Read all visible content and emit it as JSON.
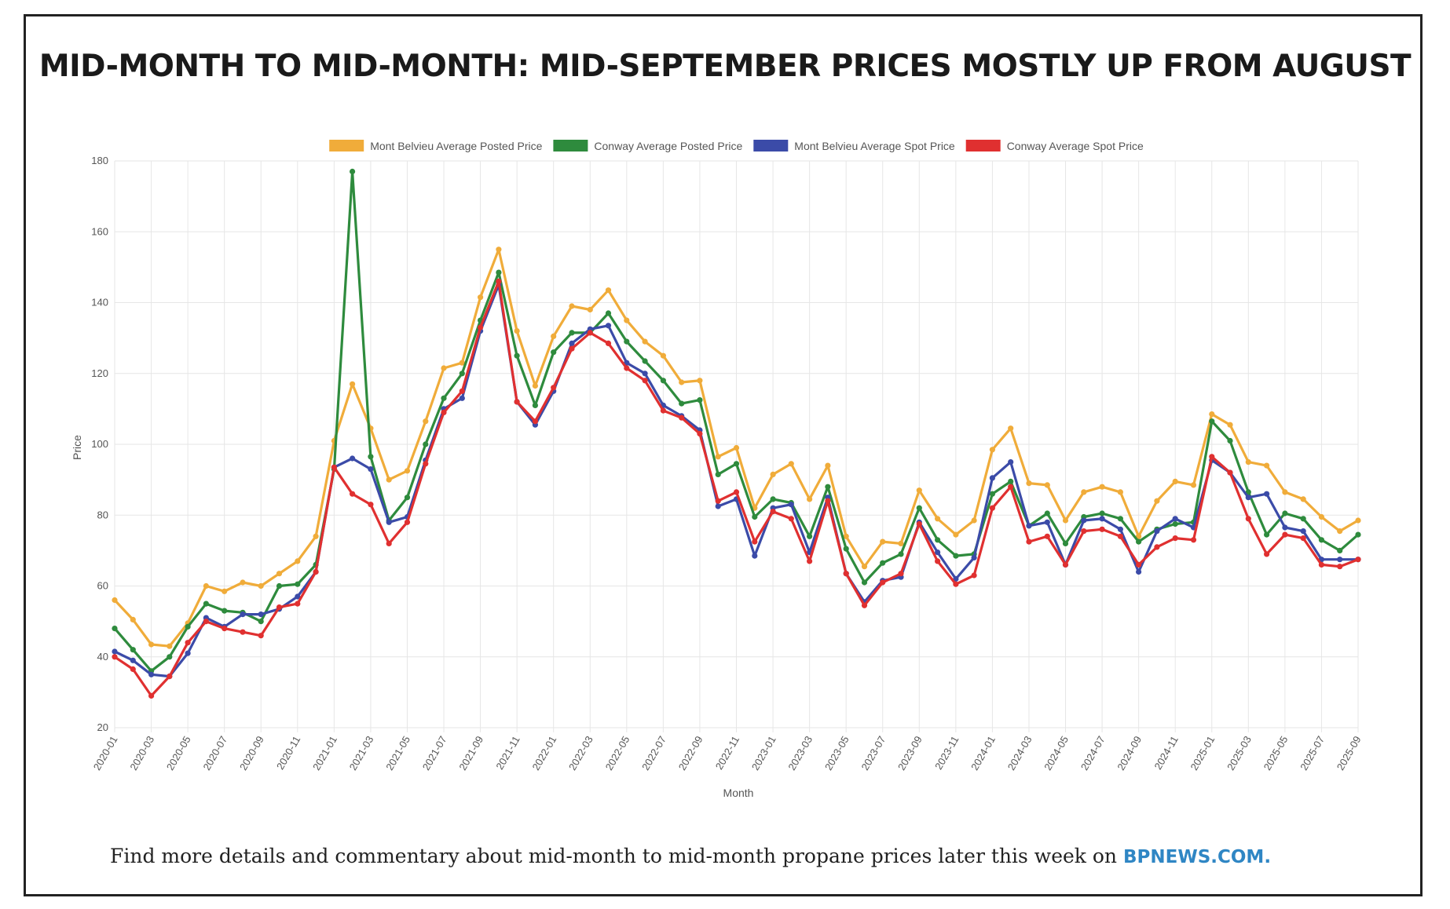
{
  "title": "MID-MONTH TO MID-MONTH: MID-SEPTEMBER PRICES MOSTLY UP FROM AUGUST",
  "footer": {
    "text": "Find more details and commentary about mid-month to mid-month propane prices later this week on ",
    "link_text": "BPNEWS.COM."
  },
  "colors": {
    "frame": "#222222",
    "footer_link": "#2f86c4",
    "grid": "#e6e6e6"
  },
  "chart_data": {
    "type": "line",
    "xlabel": "Month",
    "ylabel": "Price",
    "ylim": [
      20,
      180
    ],
    "yticks": [
      20,
      40,
      60,
      80,
      100,
      120,
      140,
      160,
      180
    ],
    "grid": true,
    "legend_position": "top-center",
    "x": [
      "2020-01",
      "2020-02",
      "2020-03",
      "2020-04",
      "2020-05",
      "2020-06",
      "2020-07",
      "2020-08",
      "2020-09",
      "2020-10",
      "2020-11",
      "2020-12",
      "2021-01",
      "2021-02",
      "2021-03",
      "2021-04",
      "2021-05",
      "2021-06",
      "2021-07",
      "2021-08",
      "2021-09",
      "2021-10",
      "2021-11",
      "2021-12",
      "2022-01",
      "2022-02",
      "2022-03",
      "2022-04",
      "2022-05",
      "2022-06",
      "2022-07",
      "2022-08",
      "2022-09",
      "2022-10",
      "2022-11",
      "2022-12",
      "2023-01",
      "2023-02",
      "2023-03",
      "2023-04",
      "2023-05",
      "2023-06",
      "2023-07",
      "2023-08",
      "2023-09",
      "2023-10",
      "2023-11",
      "2023-12",
      "2024-01",
      "2024-02",
      "2024-03",
      "2024-04",
      "2024-05",
      "2024-06",
      "2024-07",
      "2024-08",
      "2024-09",
      "2024-10",
      "2024-11",
      "2024-12",
      "2025-01",
      "2025-02",
      "2025-03",
      "2025-04",
      "2025-05",
      "2025-06",
      "2025-07",
      "2025-08",
      "2025-09"
    ],
    "xticks": [
      "2020-01",
      "2020-03",
      "2020-05",
      "2020-07",
      "2020-09",
      "2020-11",
      "2021-01",
      "2021-03",
      "2021-05",
      "2021-07",
      "2021-09",
      "2021-11",
      "2022-01",
      "2022-03",
      "2022-05",
      "2022-07",
      "2022-09",
      "2022-11",
      "2023-01",
      "2023-03",
      "2023-05",
      "2023-07",
      "2023-09",
      "2023-11",
      "2024-01",
      "2024-03",
      "2024-05",
      "2024-07",
      "2024-09",
      "2024-11",
      "2025-01",
      "2025-03",
      "2025-05",
      "2025-07",
      "2025-09"
    ],
    "series": [
      {
        "name": "Mont Belvieu Average Posted Price",
        "color": "#f0ac3a",
        "values": [
          56,
          50.5,
          43.5,
          43,
          49.5,
          60,
          58.5,
          61,
          60,
          63.5,
          67,
          74,
          101,
          117,
          104.5,
          90,
          92.5,
          106.5,
          121.5,
          123,
          141.5,
          155,
          132,
          116.5,
          130.5,
          139,
          138,
          143.5,
          135,
          129,
          125,
          117.5,
          118,
          96.5,
          99,
          82,
          91.5,
          94.5,
          84.5,
          94,
          74,
          65.5,
          72.5,
          72,
          87,
          79,
          74.5,
          78.5,
          98.5,
          104.5,
          89,
          88.5,
          78.5,
          86.5,
          88,
          86.5,
          74,
          84,
          89.5,
          88.5,
          108.5,
          105.5,
          95,
          94,
          86.5,
          84.5,
          79.5,
          75.5,
          78.5
        ]
      },
      {
        "name": "Conway Average Posted Price",
        "color": "#2e8b3d",
        "values": [
          48,
          42,
          36,
          40,
          48.5,
          55,
          53,
          52.5,
          50,
          60,
          60.5,
          66,
          93,
          177,
          96.5,
          78.5,
          85,
          100,
          113,
          120,
          135,
          148.5,
          125,
          111,
          126,
          131.5,
          131.5,
          137,
          129,
          123.5,
          118,
          111.5,
          112.5,
          91.5,
          94.5,
          79.5,
          84.5,
          83.5,
          74,
          88,
          70.5,
          61,
          66.5,
          69,
          82,
          73,
          68.5,
          69,
          86,
          89.5,
          77,
          80.5,
          72,
          79.5,
          80.5,
          79,
          72.5,
          76,
          77.5,
          78,
          106.5,
          101,
          86.5,
          74.5,
          80.5,
          79,
          73,
          70,
          74.5
        ]
      },
      {
        "name": "Mont Belvieu Average Spot Price",
        "color": "#3b4ba8",
        "values": [
          41.5,
          39,
          35,
          34.5,
          41,
          51,
          48.5,
          52,
          52,
          53.5,
          57,
          64,
          93.5,
          96,
          93,
          78,
          79.5,
          95.5,
          110,
          113,
          132,
          145,
          112,
          105.5,
          115,
          128.5,
          132.5,
          133.5,
          123,
          120,
          111,
          108,
          104,
          82.5,
          84.5,
          68.5,
          82,
          83,
          69.5,
          85,
          63.5,
          55.5,
          61.5,
          62.5,
          78,
          69.5,
          62,
          68,
          90.5,
          95,
          77,
          78,
          66,
          78.5,
          79,
          76,
          64,
          75.5,
          79,
          76.5,
          95.5,
          92,
          85,
          86,
          76.5,
          75.5,
          67.5,
          67.5,
          67.5
        ]
      },
      {
        "name": "Conway Average Spot Price",
        "color": "#e03030",
        "values": [
          40,
          36.5,
          29,
          34.5,
          44,
          50,
          48,
          47,
          46,
          54,
          55,
          64,
          93.5,
          86,
          83,
          72,
          78,
          94.5,
          109,
          115,
          133,
          146,
          112,
          106.5,
          116,
          127,
          131.5,
          128.5,
          121.5,
          118,
          109.5,
          107.5,
          103,
          84,
          86.5,
          72.5,
          81,
          79,
          67,
          84,
          63.5,
          54.5,
          61,
          63.5,
          77.5,
          67,
          60.5,
          63,
          82,
          88,
          72.5,
          74,
          66,
          75.5,
          76,
          74,
          66,
          71,
          73.5,
          73,
          96.5,
          92,
          79,
          69,
          74.5,
          73.5,
          66,
          65.5,
          67.5
        ]
      }
    ]
  }
}
